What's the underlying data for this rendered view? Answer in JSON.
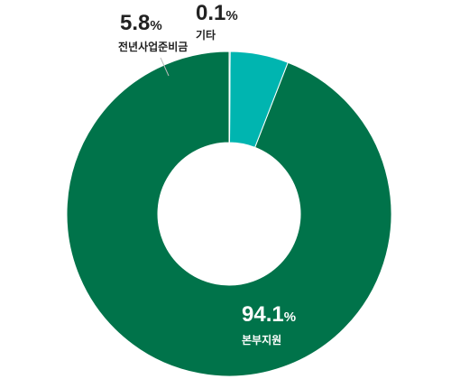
{
  "chart_data": {
    "type": "pie",
    "donut": true,
    "slices": [
      {
        "label": "본부지원",
        "value": 94.1,
        "value_text": "94.1",
        "unit": "%",
        "color": "#00734a"
      },
      {
        "label": "전년사업준비금",
        "value": 5.8,
        "value_text": "5.8",
        "unit": "%",
        "color": "#00b5b0"
      },
      {
        "label": "기타",
        "value": 0.1,
        "value_text": "0.1",
        "unit": "%",
        "color": "#005a55"
      }
    ],
    "start_angle_deg": 0,
    "direction": "counter-clockwise",
    "legend": "none",
    "label_colors": {
      "inside": "#ffffff",
      "outside": "#222222"
    }
  }
}
